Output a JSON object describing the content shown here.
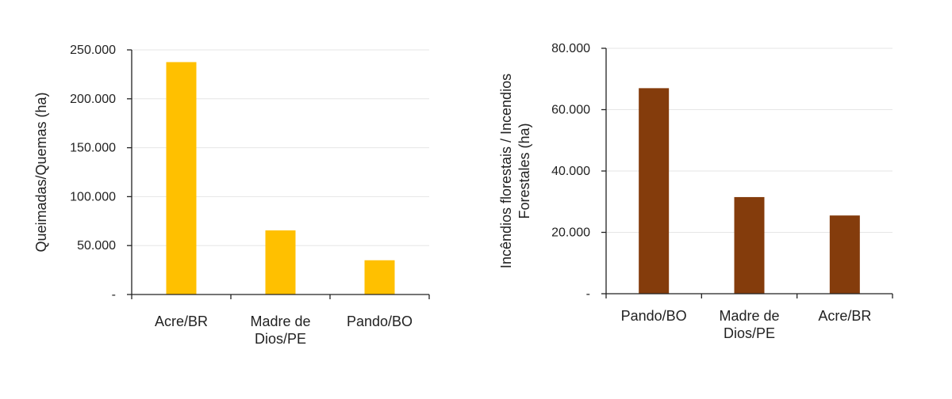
{
  "chart_data": [
    {
      "type": "bar",
      "categories": [
        [
          "Acre/BR"
        ],
        [
          "Madre de",
          "Dios/PE"
        ],
        [
          "Pando/BO"
        ]
      ],
      "values": [
        237500,
        65500,
        35000
      ],
      "ylabel": [
        "Queimadas/Quemas (ha)"
      ],
      "ylim": [
        0,
        250000
      ],
      "yticks": [
        0,
        50000,
        100000,
        150000,
        200000,
        250000
      ],
      "ytick_labels": [
        "-",
        "50.000",
        "100.000",
        "150.000",
        "200.000",
        "250.000"
      ],
      "color": "#FFC000",
      "grid": true
    },
    {
      "type": "bar",
      "categories": [
        [
          "Pando/BO"
        ],
        [
          "Madre de",
          "Dios/PE"
        ],
        [
          "Acre/BR"
        ]
      ],
      "values": [
        67000,
        31500,
        25500
      ],
      "ylabel": [
        "Incêndios florestais / Incendios",
        "Forestales (ha)"
      ],
      "ylim": [
        0,
        80000
      ],
      "yticks": [
        0,
        20000,
        40000,
        60000,
        80000
      ],
      "ytick_labels": [
        "-",
        "20.000",
        "40.000",
        "60.000",
        "80.000"
      ],
      "color": "#843C0C",
      "grid": true
    }
  ]
}
